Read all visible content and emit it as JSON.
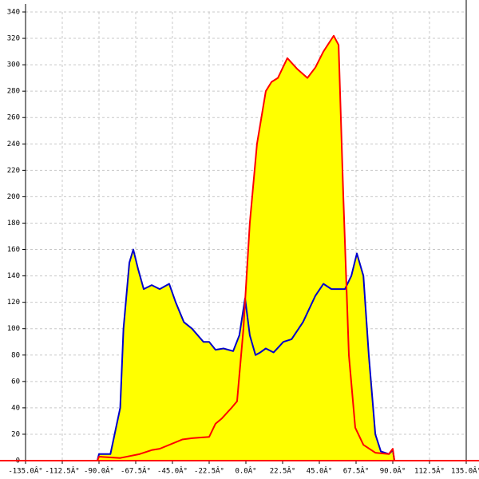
{
  "chart_data": {
    "type": "line",
    "fill_color": "#ffff00",
    "grid": true,
    "axis_color": "#ff0000",
    "xlim": [
      -135,
      135
    ],
    "xticks": [
      {
        "value": -135,
        "label": "-135.0Â°"
      },
      {
        "value": -112.5,
        "label": "-112.5Â°"
      },
      {
        "value": -90,
        "label": "-90.0Â°"
      },
      {
        "value": -67.5,
        "label": "-67.5Â°"
      },
      {
        "value": -45,
        "label": "-45.0Â°"
      },
      {
        "value": -22.5,
        "label": "-22.5Â°"
      },
      {
        "value": 0,
        "label": "0.0Â°"
      },
      {
        "value": 22.5,
        "label": "22.5Â°"
      },
      {
        "value": 45,
        "label": "45.0Â°"
      },
      {
        "value": 67.5,
        "label": "67.5Â°"
      },
      {
        "value": 90,
        "label": "90.0Â°"
      },
      {
        "value": 112.5,
        "label": "112.5Â°"
      },
      {
        "value": 135,
        "label": "135.0Â°"
      }
    ],
    "ylim": [
      0,
      340
    ],
    "yticks": [
      0,
      20,
      40,
      60,
      80,
      100,
      120,
      140,
      160,
      180,
      200,
      220,
      240,
      260,
      280,
      300,
      320,
      340
    ],
    "series": [
      {
        "color": "#0000cc",
        "x": [
          -91,
          -90,
          -83,
          -77,
          -75,
          -71.4,
          -69,
          -66,
          -62.6,
          -57.7,
          -52.8,
          -47,
          -43,
          -38,
          -33,
          -26,
          -22.5,
          -18.6,
          -13.7,
          -7.8,
          -4,
          -0.5,
          2.4,
          5.9,
          8.8,
          12.2,
          17,
          23,
          28,
          35,
          42.6,
          47.5,
          52.4,
          60.7,
          64.6,
          68,
          72,
          75.3,
          79.3,
          82.7,
          87.6,
          90,
          91
        ],
        "values": [
          0,
          5,
          5,
          40,
          100,
          150,
          160,
          145,
          130,
          133,
          130,
          134,
          120,
          105,
          100,
          90,
          90,
          84,
          85,
          83,
          95,
          123,
          95,
          80,
          82,
          85,
          82,
          90,
          92,
          105,
          125,
          134,
          130,
          130,
          140,
          157,
          140,
          80,
          20,
          7,
          5,
          8,
          0
        ]
      },
      {
        "color": "#ff0000",
        "x": [
          -91,
          -90,
          -77,
          -65,
          -57.7,
          -52.8,
          -39,
          -33,
          -22.5,
          -18.6,
          -14.7,
          -8.8,
          -5.4,
          -1.5,
          2.4,
          6.8,
          12.2,
          15.7,
          19.6,
          25.4,
          31.3,
          37.7,
          42.6,
          47.5,
          53.8,
          56.8,
          59.7,
          63.1,
          67,
          72,
          79.3,
          87.6,
          90,
          91
        ],
        "values": [
          0,
          3,
          2,
          5,
          8,
          9,
          16,
          17,
          18,
          28,
          32,
          40,
          45,
          100,
          180,
          240,
          280,
          287,
          290,
          305,
          297,
          290,
          298,
          310,
          322,
          315,
          200,
          80,
          25,
          12,
          6,
          5,
          9,
          0
        ]
      }
    ]
  }
}
